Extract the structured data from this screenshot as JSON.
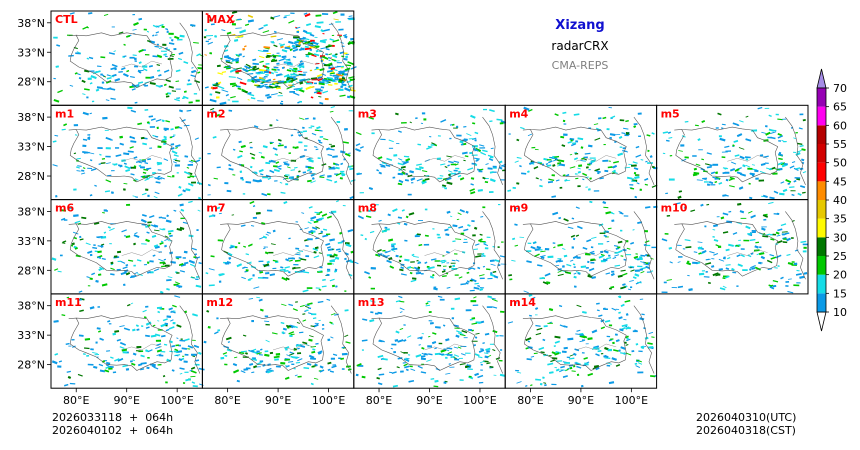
{
  "chart_data": {
    "type": "heatmap",
    "panel_layout": [
      [
        "CTL",
        "MAX"
      ],
      [
        "m1",
        "m2",
        "m3",
        "m4",
        "m5"
      ],
      [
        "m6",
        "m7",
        "m8",
        "m9",
        "m10"
      ],
      [
        "m11",
        "m12",
        "m13",
        "m14"
      ]
    ],
    "region": "Xizang",
    "variable": "radarCRX",
    "system": "CMA-REPS",
    "lat_ticks": [
      "38°N",
      "33°N",
      "28°N"
    ],
    "lon_ticks": [
      "80°E",
      "90°E",
      "100°E"
    ],
    "lon_range": [
      75,
      105
    ],
    "lat_range": [
      24,
      40
    ],
    "colorbar": {
      "levels": [
        10,
        15,
        20,
        25,
        30,
        35,
        40,
        45,
        50,
        55,
        60,
        65,
        70
      ],
      "colors": [
        "#ffffff",
        "#0b9ae6",
        "#15dce6",
        "#00c800",
        "#007800",
        "#fffa00",
        "#e6c800",
        "#ff8c00",
        "#ff0000",
        "#d20000",
        "#b40000",
        "#ff00f0",
        "#9600b4",
        "#a58ce6"
      ],
      "extend": "both"
    },
    "init_time_utc": "2026033118  +  064h",
    "init_time_cst": "2026040102  +  064h",
    "valid_time_utc": "2026040310(UTC)",
    "valid_time_cst": "2026040318(CST)"
  },
  "colors": {
    "panel_label": "#ff0000",
    "title": "#1010d0",
    "subtitle": "#808080",
    "border": "#000000"
  }
}
